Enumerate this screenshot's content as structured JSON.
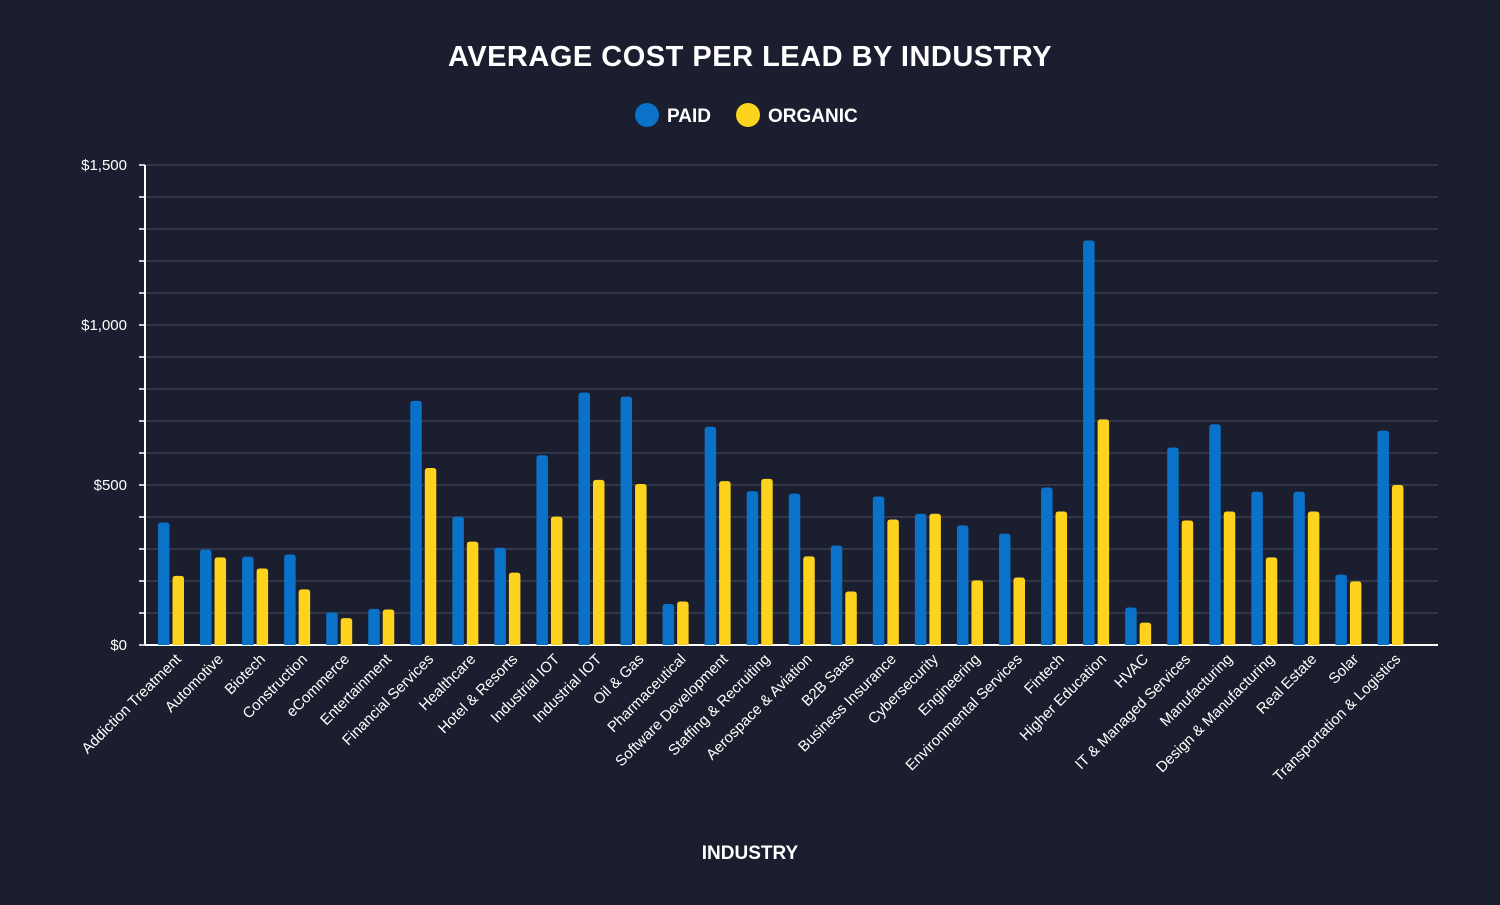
{
  "chart_data": {
    "type": "bar",
    "title": "AVERAGE COST PER LEAD BY INDUSTRY",
    "xlabel": "INDUSTRY",
    "ylabel": "",
    "ylim": [
      0,
      1500
    ],
    "y_ticks": [
      {
        "value": 0,
        "label": "$0"
      },
      {
        "value": 500,
        "label": "$500"
      },
      {
        "value": 1000,
        "label": "$1,000"
      },
      {
        "value": 1500,
        "label": "$1,500"
      }
    ],
    "grid": true,
    "legend_position": "top-center",
    "categories": [
      "Addiction Treatment",
      "Automotive",
      "Biotech",
      "Construction",
      "eCommerce",
      "Entertainment",
      "Financial Services",
      "Healthcare",
      "Hotel & Resorts",
      "Industrial IOT",
      "Industrial IOT",
      "Oil & Gas",
      "Pharmaceutical",
      "Software Development",
      "Staffing & Recruiting",
      "Aerospace & Aviation",
      "B2B Saas",
      "Business Insurance",
      "Cybersecurity",
      "Engineering",
      "Environmental Services",
      "Fintech",
      "Higher Education",
      "HVAC",
      "IT & Managed Services",
      "Manufacturing",
      "Design & Manufacturing",
      "Real Estate",
      "Solar",
      "Transportation & Logistics"
    ],
    "series": [
      {
        "name": "PAID",
        "color": "#0a72c8",
        "values": [
          383,
          298,
          276,
          283,
          102,
          113,
          763,
          401,
          304,
          593,
          789,
          776,
          128,
          682,
          481,
          473,
          311,
          464,
          410,
          374,
          348,
          492,
          1264,
          117,
          617,
          690,
          479,
          479,
          220,
          670
        ]
      },
      {
        "name": "ORGANIC",
        "color": "#fdd31e",
        "values": [
          216,
          274,
          239,
          174,
          84,
          111,
          553,
          323,
          226,
          401,
          516,
          503,
          136,
          512,
          519,
          277,
          167,
          392,
          410,
          202,
          211,
          417,
          705,
          70,
          389,
          417,
          274,
          417,
          199,
          500
        ]
      }
    ]
  }
}
